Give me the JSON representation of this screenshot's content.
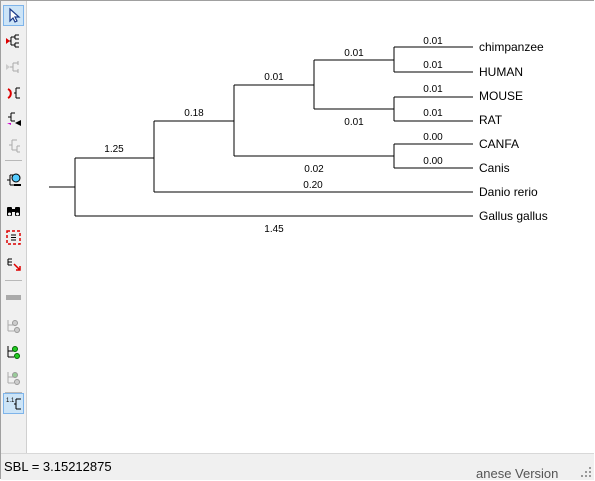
{
  "toolbar": {
    "buttons": [
      {
        "icon": "arrow-pointer-icon",
        "active": true,
        "enabled": true
      },
      {
        "icon": "tree-swap-icon",
        "active": false,
        "enabled": true
      },
      {
        "icon": "tree-subtree-icon",
        "active": false,
        "enabled": false
      },
      {
        "icon": "tree-flip-icon",
        "active": false,
        "enabled": true
      },
      {
        "icon": "tree-reroot-icon",
        "active": false,
        "enabled": true
      },
      {
        "icon": "tree-collapse-icon",
        "active": false,
        "enabled": false
      },
      {
        "icon": "tree-find-icon",
        "active": false,
        "enabled": true
      },
      {
        "icon": "binoculars-icon",
        "active": false,
        "enabled": true
      },
      {
        "icon": "zoom-fit-icon",
        "active": false,
        "enabled": true
      },
      {
        "icon": "zoom-expand-icon",
        "active": false,
        "enabled": true
      },
      {
        "icon": "branch-bar-icon",
        "active": false,
        "enabled": false
      },
      {
        "icon": "node-style-gray-icon",
        "active": false,
        "enabled": false
      },
      {
        "icon": "node-style-green-icon",
        "active": false,
        "enabled": true
      },
      {
        "icon": "node-style-green-gray-icon",
        "active": false,
        "enabled": false
      },
      {
        "icon": "branch-length-toggle-icon",
        "active": true,
        "enabled": true
      }
    ]
  },
  "tree": {
    "leaves": [
      "chimpanzee",
      "HUMAN",
      "MOUSE",
      "RAT",
      "CANFA",
      "Canis",
      "Danio rerio",
      "Gallus gallus"
    ],
    "branch_lengths": {
      "chimpanzee": "0.01",
      "human": "0.01",
      "mouse": "0.01",
      "rat": "0.01",
      "canfa": "0.00",
      "canis": "0.00",
      "primate_clade": "0.01",
      "rodent_clade": "0.01",
      "euarchontoglires": "0.01",
      "carnivore_clade": "0.02",
      "mammals": "0.18",
      "bony_vertebrates": "0.20",
      "danio": "0.20",
      "osteichthyes": "1.25",
      "gallus": "1.45"
    }
  },
  "status": {
    "sbl_text": "SBL = 3.15212875"
  },
  "background_window": {
    "partial_text": "anese Version"
  }
}
